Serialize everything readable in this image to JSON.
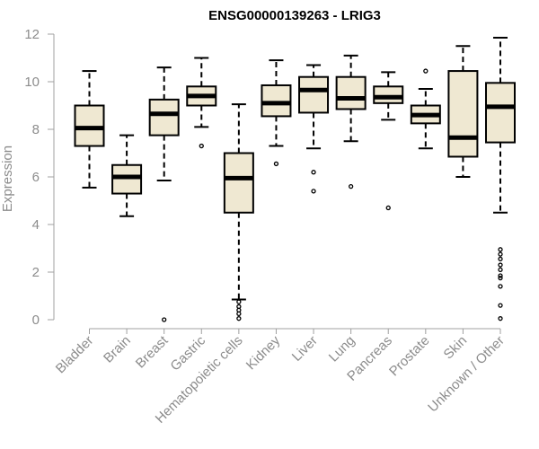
{
  "chart_data": {
    "type": "boxplot",
    "title": "ENSG00000139263 - LRIG3",
    "ylabel": "Expression",
    "xlabel": "",
    "ylim": [
      0,
      12
    ],
    "yticks": [
      0,
      2,
      4,
      6,
      8,
      10,
      12
    ],
    "grid": false,
    "box_fill": "#efe8d2",
    "categories": [
      "Bladder",
      "Brain",
      "Breast",
      "Gastric",
      "Hematopoietic cells",
      "Kidney",
      "Liver",
      "Lung",
      "Pancreas",
      "Prostate",
      "Skin",
      "Unknown / Other"
    ],
    "boxes": [
      {
        "whisker_low": 5.55,
        "q1": 7.3,
        "median": 8.05,
        "q3": 9.0,
        "whisker_high": 10.45,
        "outliers": []
      },
      {
        "whisker_low": 4.35,
        "q1": 5.3,
        "median": 6.0,
        "q3": 6.5,
        "whisker_high": 7.75,
        "outliers": []
      },
      {
        "whisker_low": 5.85,
        "q1": 7.75,
        "median": 8.65,
        "q3": 9.25,
        "whisker_high": 10.6,
        "outliers": [
          0.0
        ]
      },
      {
        "whisker_low": 8.1,
        "q1": 9.0,
        "median": 9.4,
        "q3": 9.8,
        "whisker_high": 11.0,
        "outliers": [
          7.3
        ]
      },
      {
        "whisker_low": 0.85,
        "q1": 4.5,
        "median": 5.95,
        "q3": 7.0,
        "whisker_high": 9.05,
        "outliers": [
          0.75,
          0.55,
          0.4,
          0.25,
          0.05
        ]
      },
      {
        "whisker_low": 7.3,
        "q1": 8.55,
        "median": 9.1,
        "q3": 9.85,
        "whisker_high": 10.9,
        "outliers": [
          6.55
        ]
      },
      {
        "whisker_low": 7.2,
        "q1": 8.7,
        "median": 9.65,
        "q3": 10.2,
        "whisker_high": 10.7,
        "outliers": [
          6.2,
          5.4
        ]
      },
      {
        "whisker_low": 7.5,
        "q1": 8.85,
        "median": 9.3,
        "q3": 10.2,
        "whisker_high": 11.1,
        "outliers": [
          5.6
        ]
      },
      {
        "whisker_low": 8.4,
        "q1": 9.1,
        "median": 9.35,
        "q3": 9.8,
        "whisker_high": 10.4,
        "outliers": [
          4.7
        ]
      },
      {
        "whisker_low": 7.2,
        "q1": 8.25,
        "median": 8.6,
        "q3": 9.0,
        "whisker_high": 9.7,
        "outliers": [
          10.45
        ]
      },
      {
        "whisker_low": 6.0,
        "q1": 6.85,
        "median": 7.65,
        "q3": 10.45,
        "whisker_high": 11.5,
        "outliers": []
      },
      {
        "whisker_low": 4.5,
        "q1": 7.45,
        "median": 8.95,
        "q3": 9.95,
        "whisker_high": 11.85,
        "outliers": [
          2.95,
          2.75,
          2.55,
          2.3,
          2.1,
          1.85,
          1.75,
          1.4,
          0.6,
          0.05
        ]
      }
    ]
  }
}
